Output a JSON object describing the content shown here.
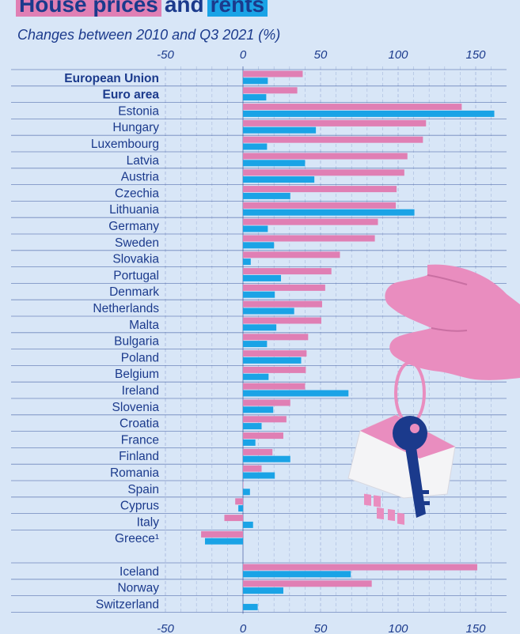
{
  "title": {
    "part1": "House prices",
    "part2": "and",
    "part3": "rents"
  },
  "subtitle": "Changes between 2010 and Q3 2021 (%)",
  "colors": {
    "house_prices": "#e07fb4",
    "rents": "#1aa3e6",
    "text": "#1b3a8c",
    "background": "#d8e6f7"
  },
  "chart_data": {
    "type": "bar",
    "orientation": "horizontal",
    "xlim": [
      -50,
      160
    ],
    "xticks": [
      "-50",
      "0",
      "50",
      "100",
      "150"
    ],
    "xtick_values": [
      -50,
      0,
      50,
      100,
      150
    ],
    "grid": true,
    "series": [
      {
        "key": "house_prices",
        "color": "#e07fb4",
        "values": [
          38.5,
          35,
          141,
          118,
          116,
          106,
          104,
          99,
          98.5,
          87,
          85,
          62.5,
          57,
          53,
          51,
          50.5,
          42,
          41,
          40.5,
          40,
          30.5,
          28,
          26,
          19,
          12,
          0,
          -5,
          -12,
          -27,
          151,
          83,
          null
        ]
      },
      {
        "key": "rents",
        "color": "#1aa3e6",
        "values": [
          16,
          15,
          162,
          47,
          15.5,
          40,
          46,
          30.5,
          110.5,
          16,
          20,
          5,
          24.5,
          20.5,
          33,
          21.5,
          15.5,
          37.5,
          16.5,
          68,
          19.5,
          12,
          8,
          30.5,
          20.5,
          4.5,
          -3,
          6.5,
          -24.5,
          69.5,
          26,
          9.5
        ]
      }
    ],
    "categories": [
      "European Union",
      "Euro area",
      "Estonia",
      "Hungary",
      "Luxembourg",
      "Latvia",
      "Austria",
      "Czechia",
      "Lithuania",
      "Germany",
      "Sweden",
      "Slovakia",
      "Portugal",
      "Denmark",
      "Netherlands",
      "Malta",
      "Bulgaria",
      "Poland",
      "Belgium",
      "Ireland",
      "Slovenia",
      "Croatia",
      "France",
      "Finland",
      "Romania",
      "Spain",
      "Cyprus",
      "Italy",
      "Greece¹",
      "Iceland",
      "Norway",
      "Switzerland"
    ],
    "bold_categories": [
      "European Union",
      "Euro area"
    ],
    "group_break_before": "Iceland"
  }
}
